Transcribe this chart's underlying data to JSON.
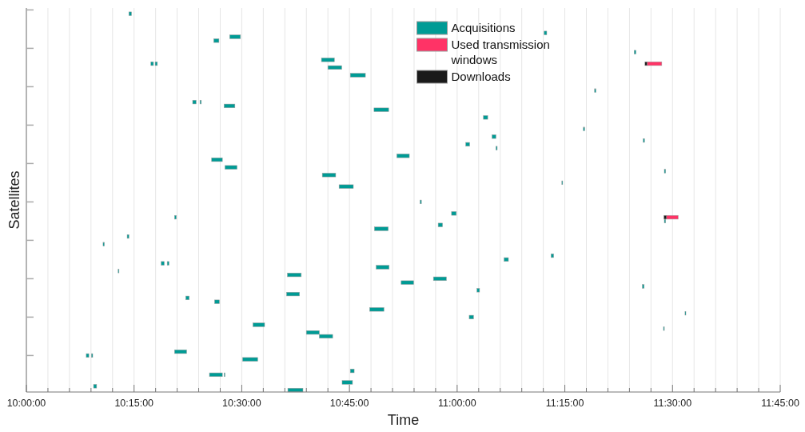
{
  "chart_data": {
    "type": "bar",
    "orientation": "horizontal",
    "xlabel": "Time",
    "ylabel": "Satellites",
    "grid": "x",
    "legend": "top",
    "categories": [
      null,
      null,
      null,
      null,
      null,
      null,
      null,
      null,
      null,
      null,
      null,
      null,
      null,
      null,
      null,
      null,
      null,
      null,
      null,
      null,
      null,
      null,
      null,
      null,
      null,
      null,
      null,
      null,
      null,
      null,
      null,
      null,
      null,
      null,
      null,
      null,
      null,
      null,
      null,
      null,
      null,
      null,
      null,
      null,
      null,
      null,
      null,
      null,
      null,
      null,
      null,
      null,
      null,
      null,
      null,
      null,
      null,
      null,
      null,
      null,
      null,
      null,
      null,
      null,
      null,
      null,
      null,
      null,
      null,
      null,
      null,
      null,
      null,
      null,
      null,
      null,
      null,
      null,
      null,
      null,
      null,
      null,
      null,
      null,
      null,
      null,
      null,
      null,
      null,
      null,
      null,
      null,
      null,
      null,
      null,
      null,
      null,
      null,
      null,
      null
    ],
    "xlim": [
      10,
      11.75
    ],
    "xticks": [
      {
        "value": 10,
        "label": "10:00:00"
      },
      {
        "value": 10.05,
        "label": null
      },
      {
        "value": 10.1,
        "label": null
      },
      {
        "value": 10.15,
        "label": null
      },
      {
        "value": 10.2,
        "label": null
      },
      {
        "value": 10.25,
        "label": "10:15:00"
      },
      {
        "value": 10.3,
        "label": null
      },
      {
        "value": 10.35,
        "label": null
      },
      {
        "value": 10.4,
        "label": null
      },
      {
        "value": 10.45,
        "label": null
      },
      {
        "value": 10.5,
        "label": "10:30:00"
      },
      {
        "value": 10.55,
        "label": null
      },
      {
        "value": 10.6,
        "label": null
      },
      {
        "value": 10.65,
        "label": null
      },
      {
        "value": 10.7,
        "label": null
      },
      {
        "value": 10.75,
        "label": "10:45:00"
      },
      {
        "value": 10.8,
        "label": null
      },
      {
        "value": 10.85,
        "label": null
      },
      {
        "value": 10.9,
        "label": null
      },
      {
        "value": 10.95,
        "label": null
      },
      {
        "value": 11,
        "label": "11:00:00"
      },
      {
        "value": 11.05,
        "label": null
      },
      {
        "value": 11.1,
        "label": null
      },
      {
        "value": 11.15,
        "label": null
      },
      {
        "value": 11.2,
        "label": null
      },
      {
        "value": 11.25,
        "label": "11:15:00"
      },
      {
        "value": 11.3,
        "label": null
      },
      {
        "value": 11.35,
        "label": null
      },
      {
        "value": 11.4,
        "label": null
      },
      {
        "value": 11.45,
        "label": null
      },
      {
        "value": 11.5,
        "label": "11:30:00"
      },
      {
        "value": 11.55,
        "label": null
      },
      {
        "value": 11.6,
        "label": null
      },
      {
        "value": 11.65,
        "label": null
      },
      {
        "value": 11.7,
        "label": null
      },
      {
        "value": 11.75,
        "label": "11:45:00"
      }
    ],
    "series": [
      {
        "name": "Acquisitions",
        "color": "#009b95",
        "base": [
          null,
          10.238,
          null,
          null,
          null,
          null,
          11.202,
          10.472,
          10.435,
          null,
          null,
          11.411,
          null,
          10.685,
          10.289,
          10.7,
          null,
          10.752,
          null,
          null,
          null,
          11.319,
          null,
          null,
          10.386,
          10.459,
          10.807,
          null,
          11.061,
          null,
          null,
          11.293,
          null,
          11.081,
          11.432,
          11.02,
          11.09,
          null,
          10.86,
          10.43,
          null,
          10.461,
          11.481,
          10.687,
          null,
          11.243,
          10.726,
          null,
          null,
          null,
          10.914,
          null,
          null,
          10.987,
          10.344,
          11.481,
          10.956,
          10.808,
          null,
          10.234,
          null,
          10.178,
          null,
          null,
          11.218,
          11.109,
          10.313,
          10.812,
          10.213,
          10.606,
          10.945,
          10.87,
          11.43,
          11.046,
          10.604,
          10.37,
          10.437,
          null,
          10.797,
          11.529,
          11.028,
          null,
          10.526,
          11.479,
          10.65,
          10.68,
          null,
          null,
          null,
          10.344,
          10.139,
          10.502,
          null,
          null,
          10.752,
          10.425,
          null,
          10.733,
          10.156,
          10.607
        ],
        "values": [
          null,
          0.006,
          null,
          null,
          null,
          null,
          0.006,
          0.025,
          0.012,
          null,
          null,
          0.004,
          null,
          0.03,
          0.006,
          0.032,
          null,
          0.035,
          null,
          null,
          null,
          0.003,
          null,
          null,
          0.008,
          0.025,
          0.034,
          null,
          0.01,
          null,
          null,
          0.003,
          null,
          0.009,
          0.003,
          0.009,
          0.003,
          null,
          0.029,
          0.025,
          null,
          0.028,
          0.003,
          0.031,
          null,
          0.002,
          0.033,
          null,
          null,
          null,
          0.003,
          null,
          null,
          0.011,
          0.004,
          0.003,
          0.01,
          0.032,
          null,
          0.004,
          null,
          0.003,
          null,
          null,
          0.006,
          0.01,
          0.007,
          0.03,
          0.002,
          0.032,
          0.03,
          0.029,
          0.004,
          0.006,
          0.03,
          0.008,
          0.011,
          null,
          0.033,
          0.002,
          0.01,
          null,
          0.027,
          0.002,
          0.03,
          0.031,
          null,
          null,
          null,
          0.028,
          0.006,
          0.035,
          null,
          null,
          0.009,
          0.03,
          null,
          0.024,
          0.007,
          0.035
        ]
      },
      {
        "color": "#009b95",
        "base": [
          null,
          null,
          null,
          null,
          null,
          null,
          null,
          null,
          null,
          null,
          null,
          null,
          null,
          null,
          10.299,
          null,
          null,
          null,
          null,
          null,
          null,
          null,
          null,
          null,
          10.403,
          null,
          null,
          null,
          null,
          null,
          null,
          null,
          null,
          null,
          null,
          null,
          null,
          null,
          null,
          null,
          null,
          null,
          null,
          null,
          null,
          null,
          null,
          null,
          null,
          null,
          null,
          null,
          null,
          null,
          null,
          null,
          null,
          null,
          null,
          null,
          null,
          null,
          null,
          null,
          null,
          null,
          10.327,
          null,
          null,
          null,
          null,
          null,
          null,
          null,
          null,
          null,
          null,
          null,
          null,
          null,
          null,
          null,
          null,
          null,
          null,
          null,
          null,
          null,
          null,
          null,
          10.151,
          null,
          null,
          null,
          null,
          10.459,
          null,
          null,
          null,
          null
        ],
        "values": [
          null,
          null,
          null,
          null,
          null,
          null,
          null,
          null,
          null,
          null,
          null,
          null,
          null,
          null,
          0.005,
          null,
          null,
          null,
          null,
          null,
          null,
          null,
          null,
          null,
          0.003,
          null,
          null,
          null,
          null,
          null,
          null,
          null,
          null,
          null,
          null,
          null,
          null,
          null,
          null,
          null,
          null,
          null,
          null,
          null,
          null,
          null,
          null,
          null,
          null,
          null,
          null,
          null,
          null,
          null,
          null,
          null,
          null,
          null,
          null,
          null,
          null,
          null,
          null,
          null,
          null,
          null,
          0.004,
          null,
          null,
          null,
          null,
          null,
          null,
          null,
          null,
          null,
          null,
          null,
          null,
          null,
          null,
          null,
          null,
          null,
          null,
          null,
          null,
          null,
          null,
          null,
          0.003,
          null,
          null,
          null,
          null,
          0.002,
          null,
          null,
          null,
          null
        ]
      },
      {
        "name": "Used transmission windows",
        "color": "#ff3366",
        "base": [
          null,
          null,
          null,
          null,
          null,
          null,
          null,
          null,
          null,
          null,
          null,
          null,
          null,
          null,
          11.441,
          null,
          null,
          null,
          null,
          null,
          null,
          null,
          null,
          null,
          null,
          null,
          null,
          null,
          null,
          null,
          null,
          null,
          null,
          null,
          null,
          null,
          null,
          null,
          null,
          null,
          null,
          null,
          null,
          null,
          null,
          null,
          null,
          null,
          null,
          null,
          null,
          null,
          null,
          null,
          11.486,
          null,
          null,
          null,
          null,
          null,
          null,
          null,
          null,
          null,
          null,
          null,
          null,
          null,
          null,
          null,
          null,
          null,
          null,
          null,
          null,
          null,
          null,
          null,
          null,
          null,
          null,
          null,
          null,
          null,
          null,
          null,
          null,
          null,
          null,
          null,
          null,
          null,
          null,
          null,
          null,
          null,
          null,
          null,
          null,
          null
        ],
        "values": [
          null,
          null,
          null,
          null,
          null,
          null,
          null,
          null,
          null,
          null,
          null,
          null,
          null,
          null,
          0.034,
          null,
          null,
          null,
          null,
          null,
          null,
          null,
          null,
          null,
          null,
          null,
          null,
          null,
          null,
          null,
          null,
          null,
          null,
          null,
          null,
          null,
          null,
          null,
          null,
          null,
          null,
          null,
          null,
          null,
          null,
          null,
          null,
          null,
          null,
          null,
          null,
          null,
          null,
          null,
          0.027,
          null,
          null,
          null,
          null,
          null,
          null,
          null,
          null,
          null,
          null,
          null,
          null,
          null,
          null,
          null,
          null,
          null,
          null,
          null,
          null,
          null,
          null,
          null,
          null,
          null,
          null,
          null,
          null,
          null,
          null,
          null,
          null,
          null,
          null,
          null,
          null,
          null,
          null,
          null,
          null,
          null,
          null,
          null,
          null,
          null
        ]
      },
      {
        "name": "Downloads",
        "color": "#1a1a1a",
        "base": [
          null,
          null,
          null,
          null,
          null,
          null,
          null,
          null,
          null,
          null,
          null,
          null,
          null,
          null,
          11.436,
          null,
          null,
          null,
          null,
          null,
          null,
          null,
          null,
          null,
          null,
          null,
          null,
          null,
          null,
          null,
          null,
          null,
          null,
          null,
          null,
          null,
          null,
          null,
          null,
          null,
          null,
          null,
          null,
          null,
          null,
          null,
          null,
          null,
          null,
          null,
          null,
          null,
          null,
          null,
          11.48,
          null,
          null,
          null,
          null,
          null,
          null,
          null,
          null,
          null,
          null,
          null,
          null,
          null,
          null,
          null,
          null,
          null,
          null,
          null,
          null,
          null,
          null,
          null,
          null,
          null,
          null,
          null,
          null,
          null,
          null,
          null,
          null,
          null,
          null,
          null,
          null,
          null,
          null,
          null,
          null,
          null,
          null,
          null,
          null,
          null
        ],
        "values": [
          null,
          null,
          null,
          null,
          null,
          null,
          null,
          null,
          null,
          null,
          null,
          null,
          null,
          null,
          0.005,
          null,
          null,
          null,
          null,
          null,
          null,
          null,
          null,
          null,
          null,
          null,
          null,
          null,
          null,
          null,
          null,
          null,
          null,
          null,
          null,
          null,
          null,
          null,
          null,
          null,
          null,
          null,
          null,
          null,
          null,
          null,
          null,
          null,
          null,
          null,
          null,
          null,
          null,
          null,
          0.006,
          null,
          null,
          null,
          null,
          null,
          null,
          null,
          null,
          null,
          null,
          null,
          null,
          null,
          null,
          null,
          null,
          null,
          null,
          null,
          null,
          null,
          null,
          null,
          null,
          null,
          null,
          null,
          null,
          null,
          null,
          null,
          null,
          null,
          null,
          null,
          null,
          null,
          null,
          null,
          null,
          null,
          null,
          null,
          null,
          null
        ]
      }
    ]
  }
}
